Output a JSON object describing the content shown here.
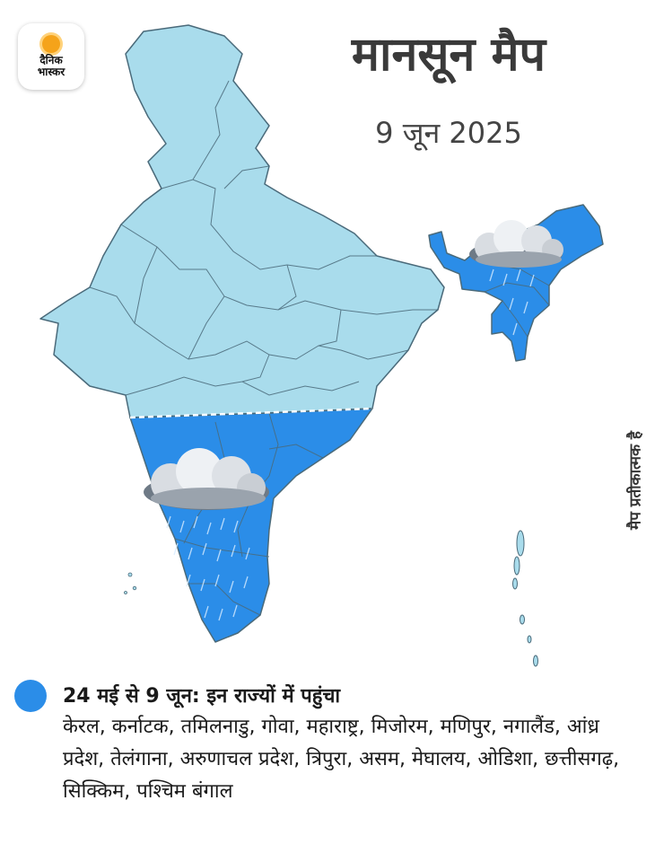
{
  "brand": {
    "logo_text_line1": "दैनिक",
    "logo_text_line2": "भास्कर",
    "accent_color": "#f5a31a"
  },
  "title": "मानसून मैप",
  "date": "9 जून 2025",
  "side_note": "मैप प्रतीकात्मक है",
  "colors": {
    "monsoon_covered": "#2b8de8",
    "not_covered": "#a9dcec",
    "border": "#4a6a7a"
  },
  "legend": {
    "heading": "24 मई से 9 जून: इन राज्यों में पहुंचा",
    "states": "केरल, कर्नाटक, तमिलनाडु, गोवा, महाराष्ट्र, मिजोरम, मणिपुर, नगालैंड, आंध्र प्रदेश, तेलंगाना, अरुणाचल प्रदेश, त्रिपुरा, असम, मेघालय, ओडिशा, छत्तीसगढ़, सिक्किम, पश्चिम बंगाल"
  },
  "icons": [
    "rain-cloud-icon",
    "monsoon-line"
  ]
}
